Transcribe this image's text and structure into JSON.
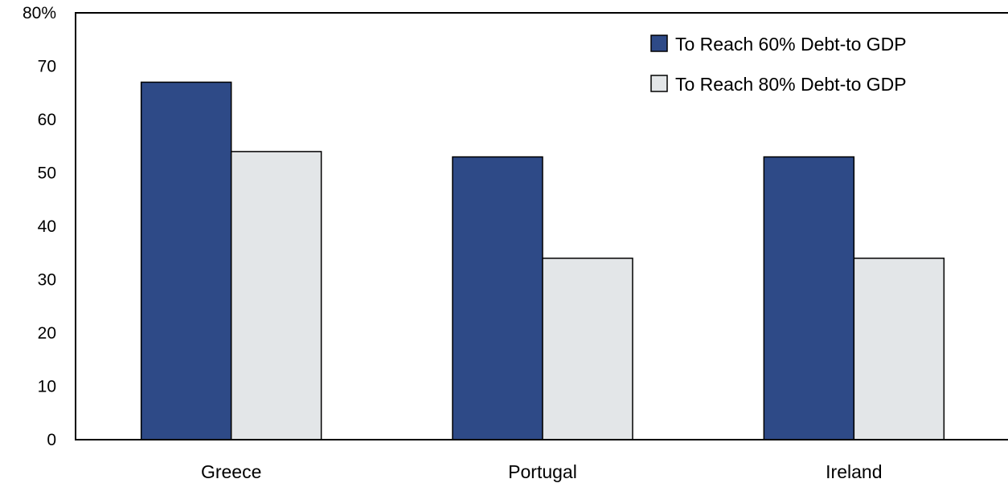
{
  "chart_data": {
    "type": "bar",
    "title": "",
    "xlabel": "",
    "ylabel": "",
    "categories": [
      "Greece",
      "Portugal",
      "Ireland"
    ],
    "series": [
      {
        "name": "To Reach 60% Debt-to GDP",
        "values": [
          67,
          53,
          53
        ],
        "color": "#2e4a87"
      },
      {
        "name": "To Reach 80% Debt-to GDP",
        "values": [
          54,
          34,
          34
        ],
        "color": "#e3e6e8"
      }
    ],
    "ylim": [
      0,
      80
    ],
    "yticks": [
      0,
      10,
      20,
      30,
      40,
      50,
      60,
      70,
      80
    ],
    "ytick_labels": [
      "0",
      "10",
      "20",
      "30",
      "40",
      "50",
      "60",
      "70",
      "80%"
    ],
    "grid": false,
    "legend_position": "top-right"
  }
}
